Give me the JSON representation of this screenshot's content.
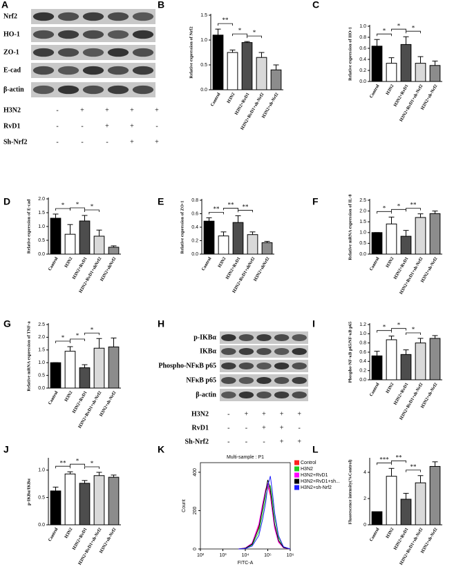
{
  "blots": [
    {
      "panel": "A",
      "proteins": [
        "Nrf2",
        "HO-1",
        "ZO-1",
        "E-cad",
        "β-actin"
      ],
      "treatments": [
        {
          "name": "H3N2",
          "signs": [
            "-",
            "+",
            "+",
            "+",
            "+"
          ]
        },
        {
          "name": "RvD1",
          "signs": [
            "-",
            "-",
            "+",
            "+",
            "-"
          ]
        },
        {
          "name": "Sh-Nrf2",
          "signs": [
            "-",
            "-",
            "-",
            "+",
            "+"
          ]
        }
      ]
    },
    {
      "panel": "H",
      "proteins": [
        "p-IKBα",
        "IKBα",
        "Phospho-NFκB p65",
        "NFκB p65",
        "β-actin"
      ],
      "treatments": [
        {
          "name": "H3N2",
          "signs": [
            "-",
            "+",
            "+",
            "+",
            "+"
          ]
        },
        {
          "name": "RvD1",
          "signs": [
            "-",
            "-",
            "+",
            "+",
            "-"
          ]
        },
        {
          "name": "Sh-Nrf2",
          "signs": [
            "-",
            "-",
            "-",
            "+",
            "+"
          ]
        }
      ]
    }
  ],
  "chart_data": [
    {
      "type": "bar",
      "panel": "B",
      "ylabel": "Relative expression of Nrf2",
      "categories": [
        "Control",
        "H3N2",
        "H3N2+RvD1",
        "H3N2+RvD1+sh-Nrf2",
        "H3N2+sh-Nrf2"
      ],
      "values": [
        1.1,
        0.75,
        0.95,
        0.65,
        0.4
      ],
      "errors": [
        0.12,
        0.05,
        0.02,
        0.1,
        0.1
      ],
      "colors": [
        "#000000",
        "#ffffff",
        "#4d4d4d",
        "#d9d9d9",
        "#8c8c8c"
      ],
      "ylim": [
        0,
        1.5
      ],
      "yticks": [
        {
          "value": 0,
          "label": "0.0"
        },
        0.5,
        {
          "value": 1,
          "label": "1.0"
        },
        1.5
      ],
      "signif": [
        {
          "text": "**",
          "between": [
            "Control",
            "H3N2"
          ]
        },
        {
          "text": "*",
          "between": [
            "H3N2",
            "H3N2+RvD1"
          ]
        },
        {
          "text": "*",
          "between": [
            "H3N2+RvD1",
            "H3N2+RvD1+sh-Nrf2"
          ]
        }
      ]
    },
    {
      "type": "bar",
      "panel": "C",
      "ylabel": "Relative expression of HO-1",
      "categories": [
        "Control",
        "H3N2",
        "H3N2+RvD1",
        "H3N2+RvD1+sh-Nrf2",
        "H3N2+sh-Nrf2"
      ],
      "values": [
        0.64,
        0.33,
        0.67,
        0.33,
        0.29
      ],
      "errors": [
        0.12,
        0.1,
        0.14,
        0.12,
        0.08
      ],
      "colors": [
        "#000000",
        "#ffffff",
        "#4d4d4d",
        "#d9d9d9",
        "#8c8c8c"
      ],
      "ylim": [
        0,
        1
      ],
      "yticks": [
        {
          "value": 0,
          "label": "0.0"
        },
        0.2,
        0.4,
        0.6,
        0.8,
        {
          "value": 1,
          "label": "1.0"
        }
      ],
      "signif": [
        {
          "text": "*",
          "between": [
            "Control",
            "H3N2"
          ]
        },
        {
          "text": "*",
          "between": [
            "H3N2",
            "H3N2+RvD1"
          ]
        },
        {
          "text": "*",
          "between": [
            "H3N2+RvD1",
            "H3N2+RvD1+sh-Nrf2"
          ]
        }
      ]
    },
    {
      "type": "bar",
      "panel": "D",
      "ylabel": "Relative expression of E-cad",
      "categories": [
        "Control",
        "H3N2",
        "H3N2+RvD1",
        "H3N2+RvD1+shNrf2",
        "H3N2+shNrf2"
      ],
      "values": [
        1.3,
        0.72,
        1.2,
        0.65,
        0.25
      ],
      "errors": [
        0.15,
        0.35,
        0.2,
        0.22,
        0.05
      ],
      "colors": [
        "#000000",
        "#ffffff",
        "#4d4d4d",
        "#d9d9d9",
        "#8c8c8c"
      ],
      "ylim": [
        0,
        2
      ],
      "yticks": [
        {
          "value": 0,
          "label": "0.0"
        },
        0.5,
        {
          "value": 1,
          "label": "1.0"
        },
        1.5,
        {
          "value": 2,
          "label": "2.0"
        }
      ],
      "signif": [
        {
          "text": "*",
          "between": [
            "Control",
            "H3N2"
          ]
        },
        {
          "text": "*",
          "between": [
            "H3N2",
            "H3N2+RvD1"
          ]
        },
        {
          "text": "*",
          "between": [
            "H3N2+RvD1",
            "H3N2+RvD1+shNrf2"
          ]
        }
      ]
    },
    {
      "type": "bar",
      "panel": "E",
      "ylabel": "Relative expression of ZO-1",
      "categories": [
        "Control",
        "H3N2",
        "H3N2+RvD1",
        "H3N2+RvD1+shNrf2",
        "H3N2+shNrf2"
      ],
      "values": [
        0.49,
        0.27,
        0.47,
        0.29,
        0.17
      ],
      "errors": [
        0.05,
        0.06,
        0.1,
        0.04,
        0.02
      ],
      "colors": [
        "#000000",
        "#ffffff",
        "#4d4d4d",
        "#d9d9d9",
        "#8c8c8c"
      ],
      "ylim": [
        0,
        0.8
      ],
      "yticks": [
        {
          "value": 0,
          "label": "0.0"
        },
        0.2,
        0.4,
        0.6,
        0.8
      ],
      "signif": [
        {
          "text": "**",
          "between": [
            "Control",
            "H3N2"
          ]
        },
        {
          "text": "**",
          "between": [
            "H3N2",
            "H3N2+RvD1"
          ]
        },
        {
          "text": "**",
          "between": [
            "H3N2+RvD1",
            "H3N2+RvD1+shNrf2"
          ]
        }
      ]
    },
    {
      "type": "bar",
      "panel": "F",
      "ylabel": "Relative mRNA expression of IL-8",
      "categories": [
        "Control",
        "H3N2",
        "H3N2+RvD1",
        "H3N2+RvD1+sh-Nrf2",
        "H3N2+sh-Nrf2"
      ],
      "values": [
        1.0,
        1.4,
        0.83,
        1.7,
        1.88
      ],
      "errors": [
        0,
        0.32,
        0.27,
        0.17,
        0.12
      ],
      "colors": [
        "#000000",
        "#ffffff",
        "#4d4d4d",
        "#d9d9d9",
        "#8c8c8c"
      ],
      "ylim": [
        0,
        2.5
      ],
      "yticks": [
        {
          "value": 0,
          "label": "0.0"
        },
        0.5,
        {
          "value": 1,
          "label": "1.0"
        },
        1.5,
        {
          "value": 2,
          "label": "2.0"
        },
        2.5
      ],
      "signif": [
        {
          "text": "*",
          "between": [
            "Control",
            "H3N2"
          ]
        },
        {
          "text": "*",
          "between": [
            "H3N2",
            "H3N2+RvD1"
          ]
        },
        {
          "text": "**",
          "between": [
            "H3N2+RvD1",
            "H3N2+RvD1+sh-Nrf2"
          ]
        }
      ]
    },
    {
      "type": "bar",
      "panel": "G",
      "ylabel": "Relative mRNA expression of TNF-a",
      "categories": [
        "Control",
        "H3N2",
        "H3N2+RvD1",
        "H3N2+RvD1+sh-Nrf2",
        "H3N2+sh-Nrf2"
      ],
      "values": [
        1.0,
        1.45,
        0.8,
        1.57,
        1.62
      ],
      "errors": [
        0,
        0.18,
        0.12,
        0.38,
        0.35
      ],
      "colors": [
        "#000000",
        "#ffffff",
        "#4d4d4d",
        "#d9d9d9",
        "#8c8c8c"
      ],
      "ylim": [
        0,
        2.5
      ],
      "yticks": [
        {
          "value": 0,
          "label": "0.0"
        },
        0.5,
        {
          "value": 1,
          "label": "1.0"
        },
        1.5,
        {
          "value": 2,
          "label": "2.0"
        },
        2.5
      ],
      "signif": [
        {
          "text": "*",
          "between": [
            "Control",
            "H3N2"
          ]
        },
        {
          "text": "*",
          "between": [
            "H3N2",
            "H3N2+RvD1"
          ]
        },
        {
          "text": "*",
          "between": [
            "H3N2+RvD1",
            "H3N2+RvD1+sh-Nrf2"
          ]
        }
      ]
    },
    {
      "type": "bar",
      "panel": "I",
      "ylabel": "Phospho-NF-κB p65/NF-κB p65",
      "categories": [
        "Control",
        "H3N2",
        "H3N2+RvD1",
        "H3N2+RvD1+sh-Nrf2",
        "H3N2+sh-Nrf2"
      ],
      "values": [
        0.52,
        0.87,
        0.55,
        0.8,
        0.9
      ],
      "errors": [
        0.1,
        0.08,
        0.1,
        0.1,
        0.06
      ],
      "colors": [
        "#000000",
        "#ffffff",
        "#4d4d4d",
        "#d9d9d9",
        "#8c8c8c"
      ],
      "ylim": [
        0,
        1.2
      ],
      "yticks": [
        {
          "value": 0,
          "label": "0.0"
        },
        0.2,
        0.4,
        0.6,
        0.8,
        {
          "value": 1,
          "label": "1.0"
        },
        1.2
      ],
      "signif": [
        {
          "text": "*",
          "between": [
            "Control",
            "H3N2"
          ]
        },
        {
          "text": "*",
          "between": [
            "H3N2",
            "H3N2+RvD1"
          ]
        },
        {
          "text": "*",
          "between": [
            "H3N2+RvD1",
            "H3N2+RvD1+sh-Nrf2"
          ]
        }
      ]
    },
    {
      "type": "bar",
      "panel": "J",
      "ylabel": "p-IKBα/IKBα",
      "categories": [
        "Control",
        "H3N2",
        "H3N2+RvD1",
        "H3N2+RvD1+sh-Nrf2",
        "H3N2+sh-Nrf2"
      ],
      "values": [
        0.62,
        0.93,
        0.76,
        0.9,
        0.87
      ],
      "errors": [
        0.07,
        0.04,
        0.05,
        0.06,
        0.04
      ],
      "colors": [
        "#000000",
        "#ffffff",
        "#4d4d4d",
        "#d9d9d9",
        "#8c8c8c"
      ],
      "ylim": [
        0,
        1.2
      ],
      "yticks": [
        {
          "value": 0,
          "label": "0.0"
        },
        0.5,
        {
          "value": 1,
          "label": "1.0"
        }
      ],
      "signif": [
        {
          "text": "**",
          "between": [
            "Control",
            "H3N2"
          ]
        },
        {
          "text": "*",
          "between": [
            "H3N2",
            "H3N2+RvD1"
          ]
        },
        {
          "text": "*",
          "between": [
            "H3N2+RvD1",
            "H3N2+RvD1+sh-Nrf2"
          ]
        }
      ]
    },
    {
      "type": "line",
      "panel": "K",
      "title": "Multi-sample : P1",
      "xlabel": "FITC-A",
      "ylabel": "Count",
      "xscale": "log",
      "x": [
        5000,
        10000,
        20000,
        40000,
        60000,
        80000,
        100000,
        130000,
        160000,
        200000,
        300000,
        500000,
        1000000
      ],
      "series": [
        {
          "name": "Control",
          "color": "#ff2020",
          "values": [
            0,
            5,
            30,
            120,
            230,
            300,
            330,
            280,
            200,
            120,
            40,
            8,
            0
          ]
        },
        {
          "name": "H3N2",
          "color": "#22cc22",
          "values": [
            0,
            3,
            20,
            90,
            190,
            270,
            320,
            330,
            260,
            170,
            60,
            10,
            0
          ]
        },
        {
          "name": "H3N2+RvD1",
          "color": "#ff00ff",
          "values": [
            0,
            5,
            30,
            130,
            240,
            310,
            340,
            290,
            200,
            110,
            35,
            6,
            0
          ]
        },
        {
          "name": "H3N2+RvD1+sh...",
          "color": "#000000",
          "values": [
            0,
            4,
            25,
            110,
            220,
            300,
            360,
            310,
            220,
            130,
            45,
            8,
            0
          ]
        },
        {
          "name": "H3N2+sh-Nrf2",
          "color": "#2020ff",
          "values": [
            0,
            2,
            15,
            70,
            160,
            240,
            330,
            380,
            300,
            190,
            70,
            12,
            0
          ]
        }
      ],
      "xlim": [
        100,
        1000000
      ],
      "xticks": [
        {
          "value": 100,
          "label": "10²"
        },
        {
          "value": 1000,
          "label": "10³"
        },
        {
          "value": 10000,
          "label": "10⁴"
        },
        {
          "value": 100000,
          "label": "10⁵"
        },
        {
          "value": 1000000,
          "label": "10⁶"
        }
      ],
      "ylim": [
        0,
        450
      ],
      "yticks": [
        0,
        200,
        400
      ]
    },
    {
      "type": "bar",
      "panel": "L",
      "ylabel": "Fluorescence intensity(%Control)",
      "categories": [
        "Control",
        "H3N2",
        "H3N2+RvD1",
        "H3N2+RvD1+sh-Nrf2",
        "H3N2+sh-Nrf2"
      ],
      "values": [
        1,
        3.7,
        1.95,
        3.2,
        4.45
      ],
      "errors": [
        0,
        0.6,
        0.45,
        0.55,
        0.35
      ],
      "colors": [
        "#000000",
        "#ffffff",
        "#4d4d4d",
        "#d9d9d9",
        "#8c8c8c"
      ],
      "ylim": [
        0,
        5
      ],
      "yticks": [
        0,
        2,
        4
      ],
      "signif": [
        {
          "text": "***",
          "between": [
            "Control",
            "H3N2"
          ]
        },
        {
          "text": "**",
          "between": [
            "H3N2",
            "H3N2+RvD1"
          ]
        },
        {
          "text": "**",
          "between": [
            "H3N2+RvD1",
            "H3N2+RvD1+sh-Nrf2"
          ]
        }
      ]
    }
  ]
}
